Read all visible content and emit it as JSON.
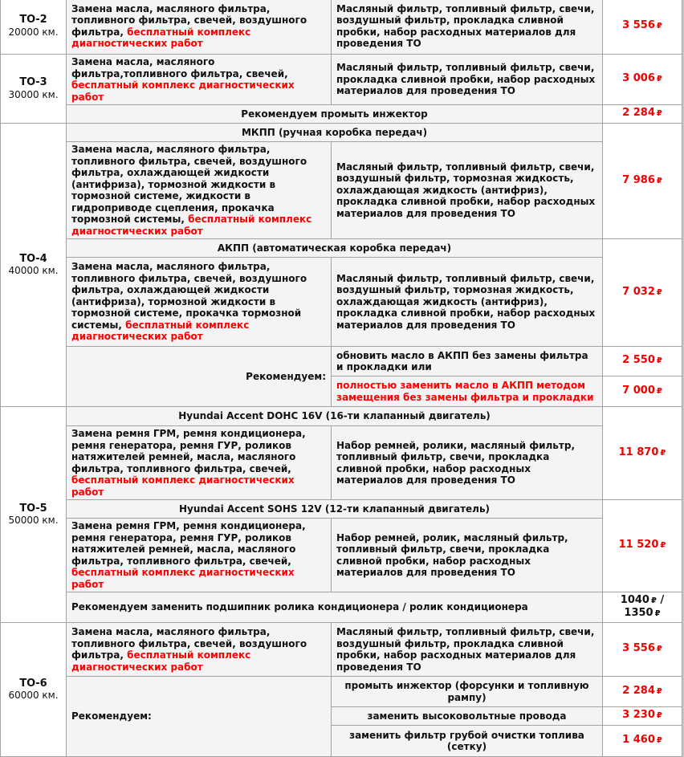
{
  "currency": "₽",
  "colors": {
    "price": "#ee0000",
    "highlight": "#ff0000",
    "border": "#a3a3a3",
    "cell_bg": "#f4f4f4"
  },
  "to2": {
    "name": "ТО-2",
    "km": "20000 км.",
    "work": "Замена масла, масляного фильтра, топливного фильтра, свечей, воздушного фильтра,",
    "free": "бесплатный комплекс диагностических работ",
    "parts": "Масляный фильтр, топливный фильтр, свечи, воздушный фильтр, прокладка сливной пробки, набор расходных материалов для проведения ТО",
    "price": "3 556"
  },
  "to3": {
    "name": "ТО-3",
    "km": "30000 км.",
    "work": "Замена масла, масляного фильтра,топливного фильтра, свечей,",
    "free": "бесплатный комплекс диагностических работ",
    "parts": "Масляный фильтр, топливный фильтр, свечи, прокладка сливной пробки, набор расходных материалов для проведения ТО",
    "price": "3 006",
    "rec": "Рекомендуем промыть инжектор",
    "rec_price": "2 284"
  },
  "to4": {
    "name": "ТО-4",
    "km": "40000 км.",
    "mkpp": {
      "title": "МКПП (ручная коробка передач)",
      "work": "Замена масла, масляного фильтра, топливного фильтра, свечей, воздушного фильтра, охлаждающей жидкости (антифриза), тормозной жидкости в тормозной системе, жидкости в гидроприводе сцепления, прокачка тормозной системы,",
      "free": "бесплатный комплекс диагностических работ",
      "parts": "Масляный фильтр, топливный фильтр, свечи, воздушный фильтр, тормозная жидкость, охлаждающая жидкость (антифриз), прокладка сливной пробки, набор расходных материалов для проведения ТО",
      "price": "7 986"
    },
    "akpp": {
      "title": "АКПП (автоматическая коробка передач)",
      "work": "Замена масла, масляного фильтра, топливного фильтра, свечей, воздушного фильтра, охлаждающей жидкости (антифриза), тормозной жидкости в тормозной системе, прокачка тормозной системы,",
      "free": "бесплатный комплекс диагностических работ",
      "parts": "Масляный фильтр, топливный фильтр, свечи, воздушный фильтр, тормозная жидкость, охлаждающая жидкость (антифриз), прокладка сливной пробки, набор расходных материалов для проведения ТО",
      "price": "7 032"
    },
    "rec_label": "Рекомендуем:",
    "rec": [
      {
        "text": "обновить масло в АКПП без замены фильтра и прокладки или",
        "price": "2 550"
      },
      {
        "text": "полностью заменить масло в АКПП методом замещения без замены фильтра и прокладки",
        "price": "7 000"
      }
    ]
  },
  "to5": {
    "name": "ТО-5",
    "km": "50000 км.",
    "dohc": {
      "title": "Hyundai Accent DOHC 16V (16-ти клапанный двигатель)",
      "work": "Замена ремня ГРМ, ремня кондиционера, ремня генератора, ремня ГУР, роликов натяжителей ремней, масла, масляного фильтра, топливного фильтра, свечей,",
      "free": "бесплатный комплекс диагностических работ",
      "parts": "Набор ремней, ролики, масляный фильтр, топливный фильтр, свечи, прокладка сливной пробки, набор расходных материалов для проведения ТО",
      "price": "11 870"
    },
    "sohc": {
      "title": "Hyundai Accent SOHS 12V (12-ти клапанный двигатель)",
      "work": "Замена ремня ГРМ, ремня кондиционера, ремня генератора, ремня ГУР, роликов натяжителей ремней, масла, масляного фильтра, топливного фильтра, свечей,",
      "free": "бесплатный комплекс диагностических работ",
      "parts": "Набор ремней, ролик, масляный фильтр, топливный фильтр, свечи, прокладка сливной пробки, набор расходных материалов для проведения ТО",
      "price": "11 520"
    },
    "rec": "Рекомендуем заменить подшипник ролика кондиционера / ролик кондиционера",
    "rec_price1": "1040",
    "rec_price2": "1350"
  },
  "to6": {
    "name": "ТО-6",
    "km": "60000 км.",
    "work": "Замена масла, масляного фильтра, топливного фильтра, свечей, воздушного фильтра,",
    "free": "бесплатный комплекс диагностических работ",
    "parts": "Масляный фильтр, топливный фильтр, свечи, воздушный фильтр, прокладка сливной пробки, набор расходных материалов для проведения ТО",
    "price": "3 556",
    "rec_label": "Рекомендуем:",
    "rec": [
      {
        "text": "промыть инжектор (форсунки и топливную рампу)",
        "price": "2 284"
      },
      {
        "text": "заменить высоковольтные провода",
        "price": "3 230"
      },
      {
        "text": "заменить фильтр грубой очистки топлива (сетку)",
        "price": "1 460"
      }
    ]
  }
}
